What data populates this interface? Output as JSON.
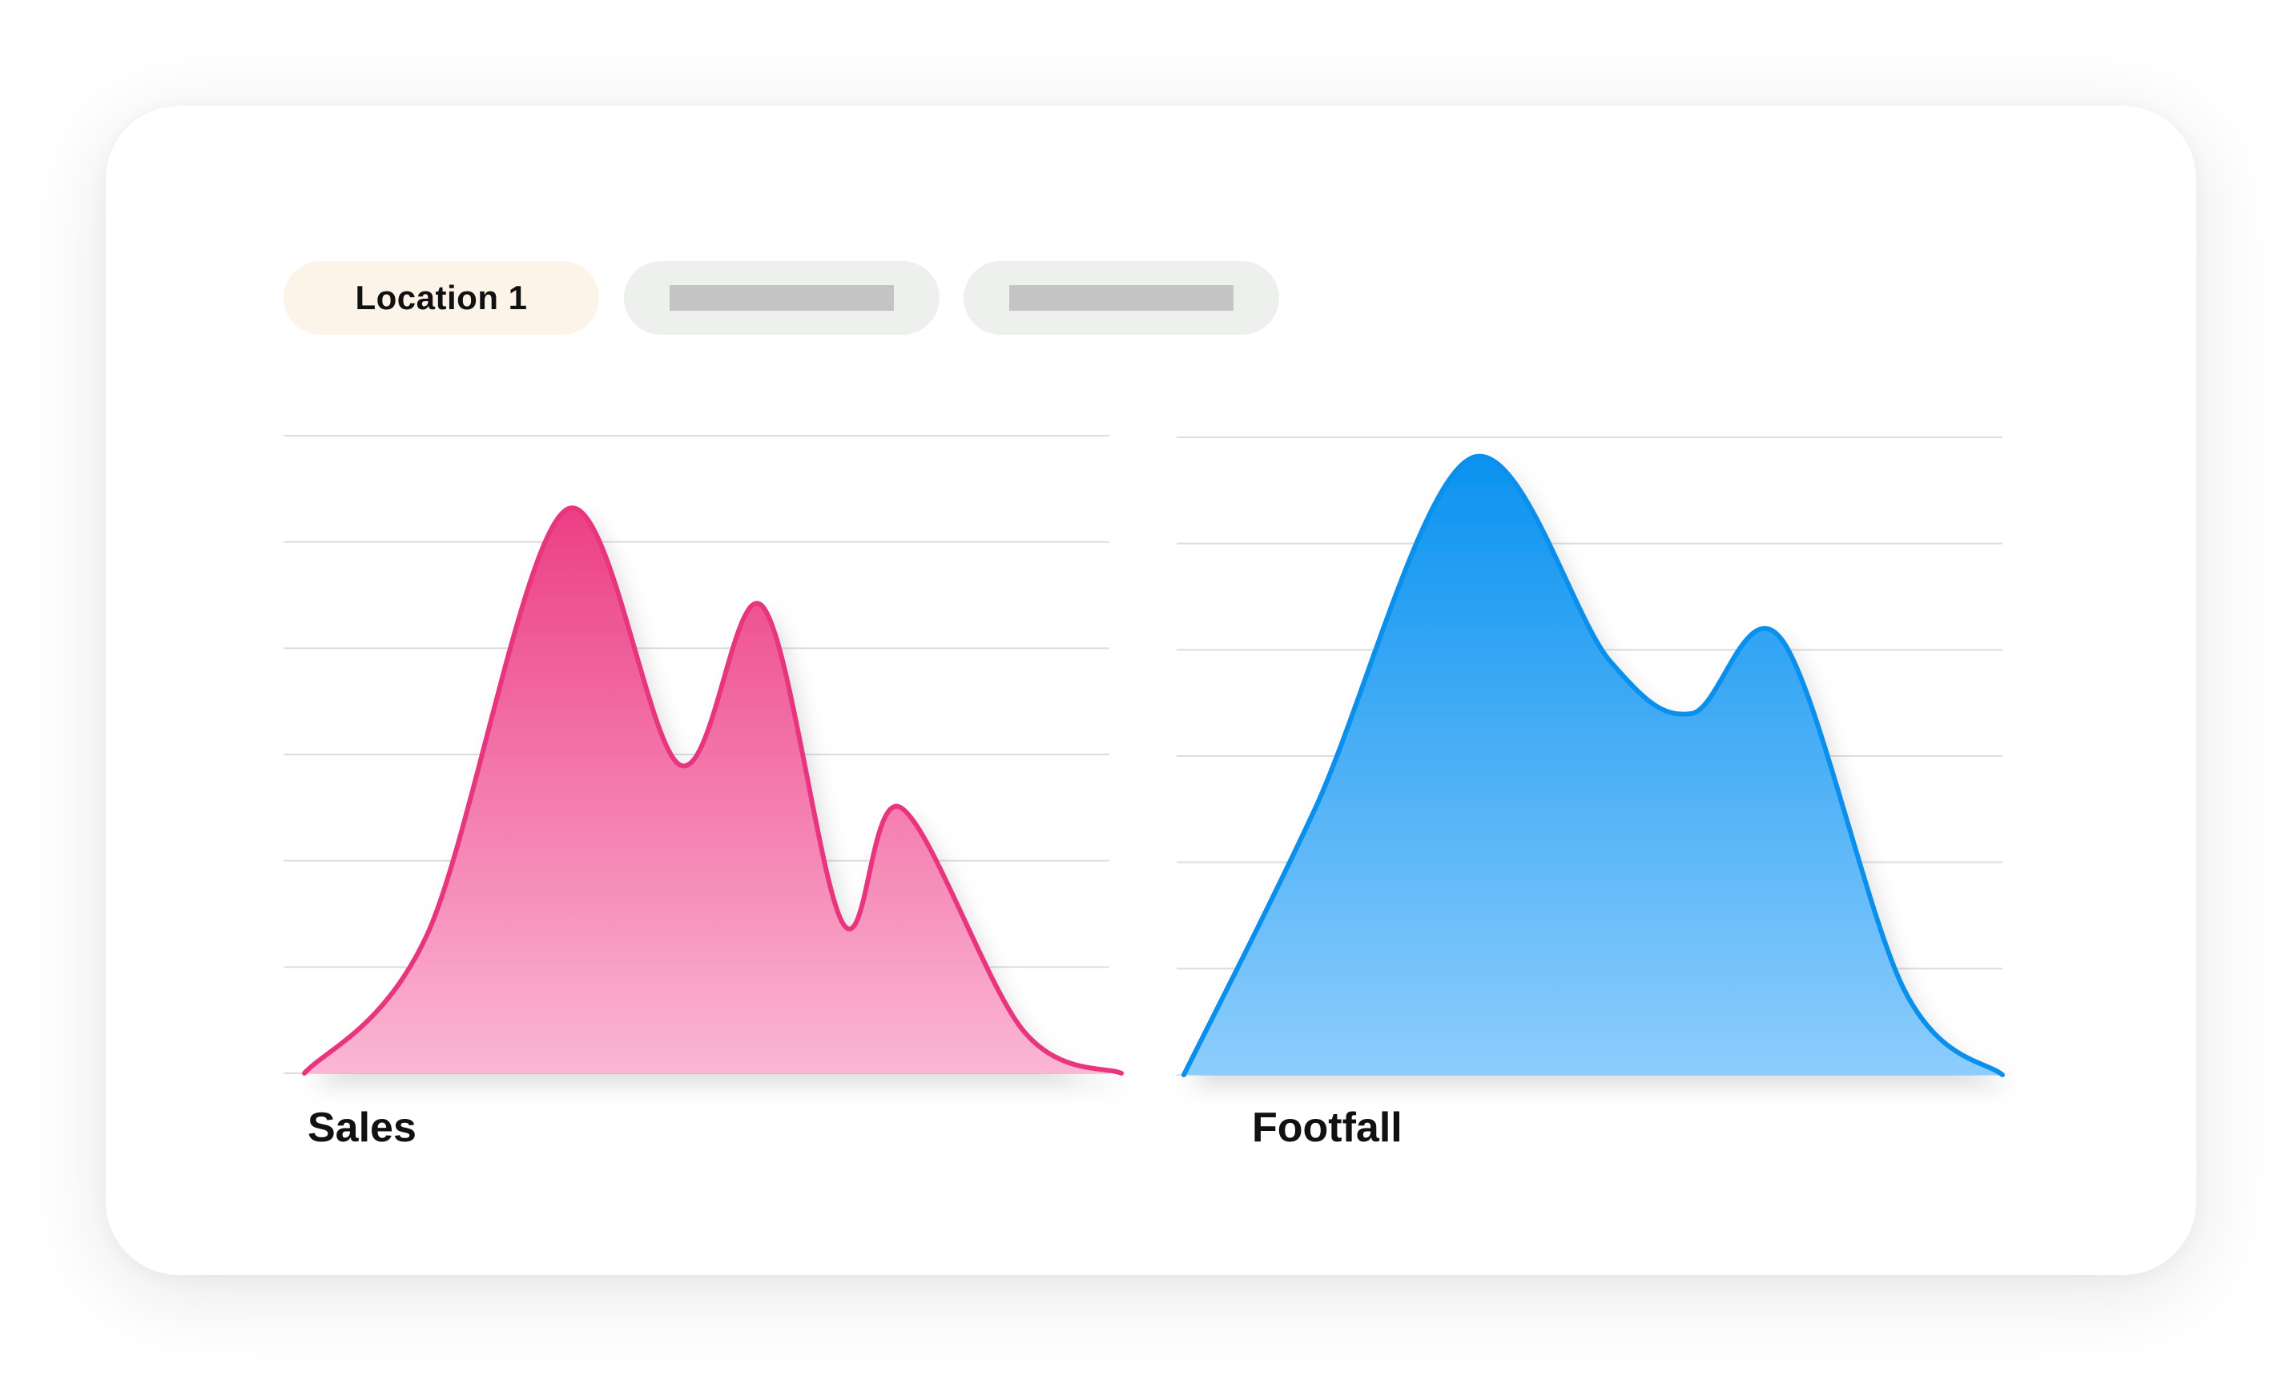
{
  "tabs": [
    {
      "label": "Location 1",
      "active": true
    },
    {
      "label": "",
      "active": false
    },
    {
      "label": "",
      "active": false
    }
  ],
  "colors": {
    "sales": "#e8357f",
    "sales_fill_top": "#ec3f86",
    "sales_fill_bottom": "#fbb6d4",
    "footfall": "#0a90ec",
    "footfall_fill_top": "#0b93f0",
    "footfall_fill_bottom": "#8dcdfc",
    "grid": "#dddddd"
  },
  "chart_data": [
    {
      "type": "area",
      "title": "Sales",
      "grid": true,
      "ylim": [
        0,
        6
      ],
      "xlim": [
        0,
        100
      ],
      "points": [
        [
          0,
          0.0
        ],
        [
          15,
          1.3
        ],
        [
          32,
          5.3
        ],
        [
          46,
          2.9
        ],
        [
          56,
          4.4
        ],
        [
          66,
          1.4
        ],
        [
          73,
          2.5
        ],
        [
          88,
          0.4
        ],
        [
          100,
          0.0
        ]
      ]
    },
    {
      "type": "area",
      "title": "Footfall",
      "grid": true,
      "ylim": [
        0,
        6
      ],
      "xlim": [
        0,
        100
      ],
      "points": [
        [
          0,
          0.0
        ],
        [
          16,
          2.5
        ],
        [
          35,
          5.8
        ],
        [
          52,
          3.9
        ],
        [
          62,
          3.4
        ],
        [
          73,
          4.1
        ],
        [
          88,
          0.8
        ],
        [
          100,
          0.0
        ]
      ]
    }
  ]
}
